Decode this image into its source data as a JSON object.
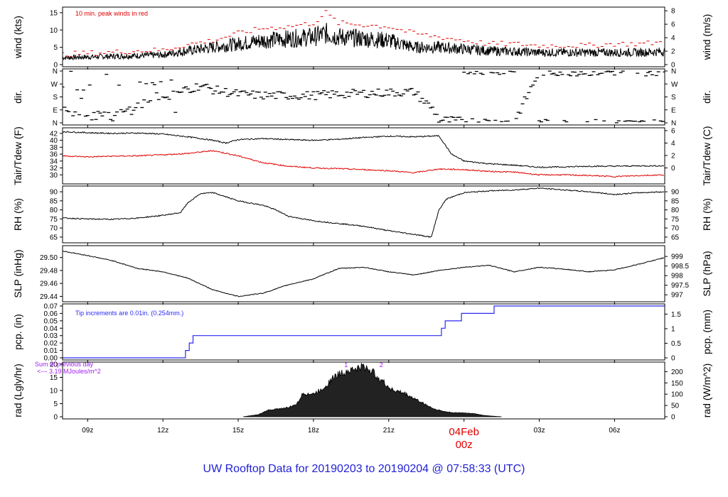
{
  "title": "UW Rooftop Data for 20190203  to  20190204 @ 07:58:33  (UTC)",
  "colors": {
    "title": "#1f1fd6",
    "peak": "#e00000",
    "tdew": "#e00000",
    "pcp": "#2a2af0",
    "note": "#a020f0",
    "frame": "#000000"
  },
  "time_axis": {
    "ticks": [
      {
        "x": 9,
        "label": "09z"
      },
      {
        "x": 12,
        "label": "12z"
      },
      {
        "x": 15,
        "label": "15z"
      },
      {
        "x": 18,
        "label": "18z"
      },
      {
        "x": 21,
        "label": "21z"
      },
      {
        "x": 27,
        "label": "03z"
      },
      {
        "x": 30,
        "label": "06z"
      }
    ],
    "day_marker": {
      "x": 24,
      "date": "04Feb",
      "hour": "00z"
    },
    "range": [
      8.0,
      32.0
    ]
  },
  "chart_data": [
    {
      "id": "wind",
      "type": "line",
      "left_label": "wind (kts)",
      "right_label": "wind (m/s)",
      "annotation": "10 min. peak winds in red",
      "left_range": [
        0,
        16
      ],
      "left_ticks": [
        0,
        5,
        10,
        15
      ],
      "right_range": [
        0,
        8.23
      ],
      "right_ticks": [
        0,
        2,
        4,
        6,
        8
      ],
      "series": [
        {
          "name": "",
          "x": [
            8,
            9,
            10,
            11,
            12,
            12.5,
            13,
            14,
            15,
            16,
            17,
            18,
            18.5,
            19,
            20,
            21,
            22,
            23,
            24,
            25,
            26,
            27,
            28,
            29,
            30,
            31,
            32
          ],
          "values": [
            2,
            2.2,
            2.4,
            2.6,
            2.8,
            3.5,
            4,
            5,
            6,
            7,
            7.5,
            8,
            9,
            8,
            7.5,
            7,
            5,
            5,
            4.5,
            4,
            3.8,
            3.5,
            3.5,
            3.5,
            3.5,
            3.5,
            3.8
          ]
        },
        {
          "name": "10 min. peak winds in red",
          "x": [
            8,
            9,
            10,
            11,
            12,
            12.5,
            13,
            14,
            15,
            16,
            17,
            18,
            18.5,
            19,
            20,
            21,
            22,
            23,
            24,
            25,
            26,
            27,
            28,
            29,
            30,
            31,
            32
          ],
          "values": [
            3,
            3.3,
            3.6,
            4,
            4.2,
            5,
            5.8,
            7,
            9,
            10.5,
            11,
            12,
            15,
            12,
            11.5,
            11,
            9,
            8,
            7,
            6,
            6,
            5.5,
            5.5,
            5.5,
            6,
            6,
            6.5
          ]
        }
      ]
    },
    {
      "id": "dir",
      "type": "scatter",
      "left_label": "dir.",
      "right_label": "dir.",
      "left_ticks": [
        "N",
        "E",
        "S",
        "W",
        "N"
      ],
      "right_ticks": [
        "N",
        "E",
        "S",
        "W",
        "N"
      ],
      "range": [
        0,
        360
      ],
      "series": [
        {
          "name": "",
          "x": [
            8,
            9,
            10,
            11,
            12,
            13,
            13.5,
            14,
            15,
            16,
            17,
            18,
            19,
            20,
            21,
            22,
            22.8,
            23,
            24,
            25,
            26,
            27,
            28,
            29,
            30,
            31,
            32
          ],
          "values": [
            90,
            60,
            40,
            120,
            200,
            230,
            260,
            230,
            200,
            190,
            190,
            190,
            200,
            205,
            210,
            215,
            90,
            20,
            10,
            5,
            5,
            355,
            355,
            355,
            355,
            355,
            355
          ]
        }
      ]
    },
    {
      "id": "temp",
      "type": "line",
      "left_label": "Tair/Tdew (F)",
      "right_label": "Tair/Tdew (C)",
      "left_range": [
        28,
        43
      ],
      "left_ticks": [
        30,
        32,
        34,
        36,
        38,
        40,
        42
      ],
      "right_range": [
        -2.22,
        6.11
      ],
      "right_ticks": [
        0,
        2,
        4,
        6
      ],
      "series": [
        {
          "name": "Tair",
          "x": [
            8,
            9,
            10,
            11,
            12,
            13,
            14,
            14.5,
            15,
            16,
            17,
            18,
            19,
            20,
            21,
            22,
            23,
            23.5,
            24,
            25,
            26,
            27,
            28,
            29,
            30,
            31,
            32
          ],
          "values": [
            42.5,
            42.2,
            42.0,
            42.1,
            41.8,
            41.0,
            40.0,
            39.2,
            40.2,
            40.5,
            40.2,
            40.0,
            40.3,
            40.8,
            41.2,
            41.0,
            41.3,
            36.0,
            34.0,
            33.2,
            32.8,
            32.2,
            32.3,
            32.5,
            32.5,
            32.6,
            32.6
          ]
        },
        {
          "name": "Tdew",
          "x": [
            8,
            9,
            10,
            11,
            12,
            13,
            14,
            15,
            16,
            17,
            18,
            19,
            20,
            21,
            22,
            23,
            24,
            25,
            26,
            27,
            28,
            29,
            30,
            31,
            32
          ],
          "values": [
            35.5,
            35.2,
            35.4,
            35.5,
            35.8,
            36.2,
            37.0,
            35.5,
            33.5,
            32.5,
            32.0,
            31.8,
            31.5,
            31.2,
            30.6,
            31.7,
            31.5,
            31.0,
            30.8,
            30.0,
            30.0,
            29.8,
            29.5,
            29.8,
            30.0
          ]
        }
      ]
    },
    {
      "id": "rh",
      "type": "line",
      "left_label": "RH (%)",
      "right_label": "RH (%)",
      "left_range": [
        63,
        92
      ],
      "left_ticks": [
        65,
        70,
        75,
        80,
        85,
        90
      ],
      "right_ticks": [
        65,
        70,
        75,
        80,
        85,
        90
      ],
      "series": [
        {
          "name": "",
          "x": [
            8,
            9,
            10,
            11,
            12,
            12.7,
            13,
            13.5,
            14,
            15,
            16,
            16.5,
            17,
            18,
            19,
            20,
            21,
            22,
            22.7,
            23,
            23.3,
            24,
            25,
            26,
            27,
            28,
            29,
            30,
            31,
            32
          ],
          "values": [
            75.5,
            75.0,
            74.8,
            75.5,
            77.0,
            78.5,
            84.0,
            89.0,
            89.5,
            85.0,
            82.5,
            80.0,
            76.5,
            74.0,
            72.5,
            71.0,
            68.5,
            66.5,
            65.0,
            80.0,
            86.0,
            89.5,
            90.5,
            91.0,
            92.0,
            91.0,
            90.0,
            88.5,
            89.5,
            90.0
          ]
        }
      ]
    },
    {
      "id": "slp",
      "type": "line",
      "left_label": "SLP (inHg)",
      "right_label": "SLP (hPa)",
      "left_range": [
        29.435,
        29.515
      ],
      "left_ticks": [
        29.44,
        29.46,
        29.48,
        29.5
      ],
      "right_range": [
        996.75,
        999.45
      ],
      "right_ticks": [
        997,
        997.5,
        998,
        998.5,
        999
      ],
      "series": [
        {
          "name": "",
          "x": [
            8,
            9,
            10,
            11,
            12,
            13,
            14,
            15,
            16,
            17,
            18,
            19,
            20,
            21,
            22,
            23,
            24,
            25,
            26,
            27,
            28,
            29,
            30,
            31,
            32
          ],
          "values": [
            29.51,
            29.503,
            29.495,
            29.483,
            29.478,
            29.468,
            29.45,
            29.44,
            29.445,
            29.458,
            29.467,
            29.483,
            29.485,
            29.478,
            29.473,
            29.48,
            29.485,
            29.488,
            29.478,
            29.485,
            29.482,
            29.478,
            29.481,
            29.49,
            29.5
          ]
        }
      ]
    },
    {
      "id": "pcp",
      "type": "line",
      "left_label": "pcp. (in)",
      "right_label": "pcp. (mm)",
      "annotation": "Tip increments are 0.01in. (0.254mm.)",
      "left_range": [
        0,
        0.07
      ],
      "left_ticks": [
        0.0,
        0.01,
        0.02,
        0.03,
        0.04,
        0.05,
        0.06,
        0.07
      ],
      "right_range": [
        0,
        1.778
      ],
      "right_ticks": [
        0,
        0.5,
        1,
        1.5
      ],
      "series": [
        {
          "name": "",
          "x": [
            8,
            12.9,
            12.9,
            13.05,
            13.05,
            13.2,
            13.2,
            23.1,
            23.1,
            23.25,
            23.25,
            23.9,
            23.9,
            25.2,
            25.2,
            32
          ],
          "values": [
            0,
            0,
            0.01,
            0.01,
            0.02,
            0.02,
            0.03,
            0.03,
            0.04,
            0.04,
            0.05,
            0.05,
            0.06,
            0.06,
            0.07,
            0.07
          ]
        }
      ]
    },
    {
      "id": "rad",
      "type": "area",
      "left_label": "rad (Lgly/hr)",
      "right_label": "rad (W/m^2)",
      "annotation": "Sum of previous day\n<--- 3.19 MJoules/m^2",
      "left_range": [
        0,
        20
      ],
      "left_ticks": [
        0,
        5,
        10,
        15,
        20
      ],
      "right_range": [
        0,
        232.6
      ],
      "right_ticks": [
        0,
        50,
        100,
        150,
        200
      ],
      "markers": [
        {
          "x": 19.3,
          "label": "1"
        },
        {
          "x": 20.7,
          "label": "2"
        }
      ],
      "series": [
        {
          "name": "",
          "x": [
            15.2,
            15.8,
            16.2,
            16.6,
            17.0,
            17.3,
            17.6,
            18.0,
            18.4,
            18.8,
            19.2,
            19.6,
            20.0,
            20.3,
            20.6,
            20.9,
            21.2,
            21.6,
            22.0,
            22.4,
            22.8,
            23.2,
            23.6,
            24.0,
            24.4,
            24.8,
            25.2,
            25.5
          ],
          "values": [
            0,
            0.8,
            2.5,
            3.0,
            3.5,
            4.5,
            9,
            8.5,
            11,
            15,
            17,
            18,
            19,
            17.5,
            15,
            12,
            10,
            9,
            7,
            5,
            3,
            2,
            1.5,
            1.5,
            1.2,
            0.5,
            0.2,
            0
          ]
        }
      ]
    }
  ]
}
